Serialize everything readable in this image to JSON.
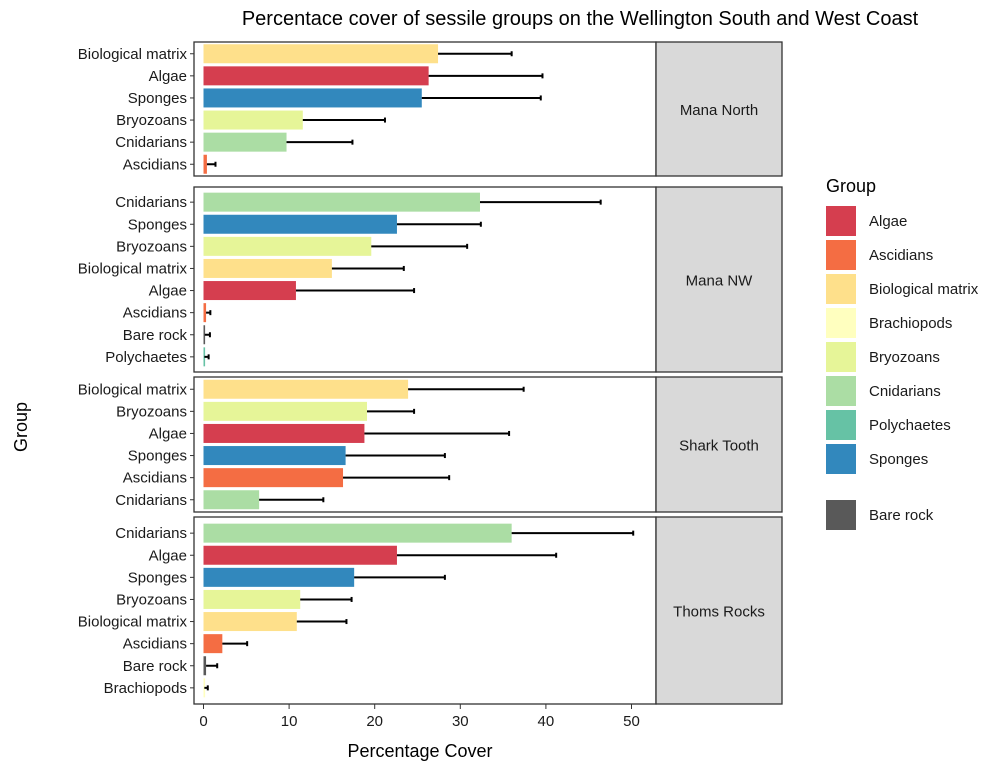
{
  "chart_data": {
    "type": "bar",
    "orientation": "horizontal",
    "faceted": true,
    "title": "Percentace cover of sessile groups on the Wellington South and West Coast",
    "xlabel": "Percentage Cover",
    "ylabel": "Group",
    "xlim": [
      0,
      53
    ],
    "xticks": [
      "0",
      "10",
      "20",
      "30",
      "40",
      "50"
    ],
    "grid": false,
    "legend": {
      "title": "Group",
      "position": "right",
      "items": [
        {
          "label": "Algae",
          "color": "#d53e4f"
        },
        {
          "label": "Ascidians",
          "color": "#f46d43"
        },
        {
          "label": "Biological matrix",
          "color": "#fee08b"
        },
        {
          "label": "Brachiopods",
          "color": "#ffffbf"
        },
        {
          "label": "Bryozoans",
          "color": "#e6f598"
        },
        {
          "label": "Cnidarians",
          "color": "#abdda4"
        },
        {
          "label": "Polychaetes",
          "color": "#66c2a5"
        },
        {
          "label": "Sponges",
          "color": "#3288bd"
        },
        {
          "label": "Bare rock",
          "color": "#595959"
        }
      ]
    },
    "panels": [
      {
        "strip": "Mana North",
        "bars": [
          {
            "category": "Biological matrix",
            "value": 27.4,
            "error": 8.6,
            "color": "#fee08b"
          },
          {
            "category": "Algae",
            "value": 26.3,
            "error": 13.3,
            "color": "#d53e4f"
          },
          {
            "category": "Sponges",
            "value": 25.5,
            "error": 13.9,
            "color": "#3288bd"
          },
          {
            "category": "Bryozoans",
            "value": 11.6,
            "error": 9.6,
            "color": "#e6f598"
          },
          {
            "category": "Cnidarians",
            "value": 9.7,
            "error": 7.7,
            "color": "#abdda4"
          },
          {
            "category": "Ascidians",
            "value": 0.4,
            "error": 1.0,
            "color": "#f46d43"
          }
        ]
      },
      {
        "strip": "Mana NW",
        "bars": [
          {
            "category": "Cnidarians",
            "value": 32.3,
            "error": 14.1,
            "color": "#abdda4"
          },
          {
            "category": "Sponges",
            "value": 22.6,
            "error": 9.8,
            "color": "#3288bd"
          },
          {
            "category": "Bryozoans",
            "value": 19.6,
            "error": 11.2,
            "color": "#e6f598"
          },
          {
            "category": "Biological matrix",
            "value": 15.0,
            "error": 8.4,
            "color": "#fee08b"
          },
          {
            "category": "Algae",
            "value": 10.8,
            "error": 13.8,
            "color": "#d53e4f"
          },
          {
            "category": "Ascidians",
            "value": 0.3,
            "error": 0.5,
            "color": "#f46d43"
          },
          {
            "category": "Bare rock",
            "value": 0.15,
            "error": 0.6,
            "color": "#595959"
          },
          {
            "category": "Polychaetes",
            "value": 0.1,
            "error": 0.5,
            "color": "#66c2a5"
          }
        ]
      },
      {
        "strip": "Shark Tooth",
        "bars": [
          {
            "category": "Biological matrix",
            "value": 23.9,
            "error": 13.5,
            "color": "#fee08b"
          },
          {
            "category": "Bryozoans",
            "value": 19.1,
            "error": 5.5,
            "color": "#e6f598"
          },
          {
            "category": "Algae",
            "value": 18.8,
            "error": 16.9,
            "color": "#d53e4f"
          },
          {
            "category": "Sponges",
            "value": 16.6,
            "error": 11.6,
            "color": "#3288bd"
          },
          {
            "category": "Ascidians",
            "value": 16.3,
            "error": 12.4,
            "color": "#f46d43"
          },
          {
            "category": "Cnidarians",
            "value": 6.5,
            "error": 7.5,
            "color": "#abdda4"
          }
        ]
      },
      {
        "strip": "Thoms Rocks",
        "bars": [
          {
            "category": "Cnidarians",
            "value": 36.0,
            "error": 14.2,
            "color": "#abdda4"
          },
          {
            "category": "Algae",
            "value": 22.6,
            "error": 18.6,
            "color": "#d53e4f"
          },
          {
            "category": "Sponges",
            "value": 17.6,
            "error": 10.6,
            "color": "#3288bd"
          },
          {
            "category": "Bryozoans",
            "value": 11.3,
            "error": 6.0,
            "color": "#e6f598"
          },
          {
            "category": "Biological matrix",
            "value": 10.9,
            "error": 5.8,
            "color": "#fee08b"
          },
          {
            "category": "Ascidians",
            "value": 2.2,
            "error": 2.9,
            "color": "#f46d43"
          },
          {
            "category": "Bare rock",
            "value": 0.3,
            "error": 1.3,
            "color": "#595959"
          },
          {
            "category": "Brachiopods",
            "value": 0.1,
            "error": 0.4,
            "color": "#ffffbf"
          }
        ]
      }
    ]
  }
}
